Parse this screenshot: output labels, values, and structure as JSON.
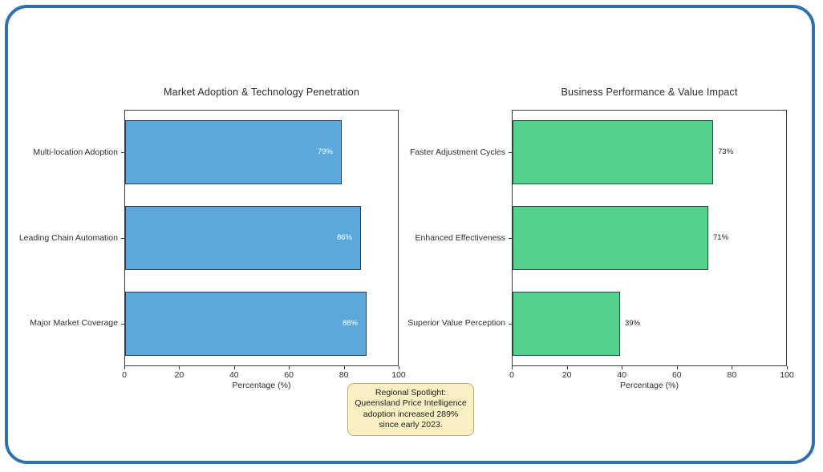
{
  "chart_data": [
    {
      "type": "bar",
      "orientation": "horizontal",
      "title": "Market Adoption & Technology Penetration",
      "categories": [
        "Multi-location Adoption",
        "Leading Chain Automation",
        "Major Market Coverage"
      ],
      "values": [
        79,
        86,
        88
      ],
      "value_labels": [
        "79%",
        "86%",
        "88%"
      ],
      "xlabel": "Percentage (%)",
      "xlim": [
        0,
        100
      ],
      "xticks": [
        "0",
        "20",
        "40",
        "60",
        "80",
        "100"
      ],
      "grid": false,
      "legend": "none",
      "bar_color": "#5BA9DC",
      "bar_edge_color": "#2A3B4D",
      "value_label_position": "inside",
      "value_label_color": "#FFFFFF"
    },
    {
      "type": "bar",
      "orientation": "horizontal",
      "title": "Business Performance & Value Impact",
      "categories": [
        "Faster Adjustment Cycles",
        "Enhanced Effectiveness",
        "Superior Value Perception"
      ],
      "values": [
        73,
        71,
        39
      ],
      "value_labels": [
        "73%",
        "71%",
        "39%"
      ],
      "xlabel": "Percentage (%)",
      "xlim": [
        0,
        100
      ],
      "xticks": [
        "0",
        "20",
        "40",
        "60",
        "80",
        "100"
      ],
      "grid": false,
      "legend": "none",
      "bar_color": "#54D18C",
      "bar_edge_color": "#234A3A",
      "value_label_position": "outside",
      "value_label_color": "#1D1D1D"
    }
  ],
  "annotation": {
    "lines": [
      "Regional Spotlight:",
      "Queensland Price Intelligence",
      "adoption increased 289%",
      "since early 2023."
    ],
    "background_color": "#FAF0C4",
    "border_color": "#C2B06E"
  },
  "frame": {
    "border_color": "#2E6FB0"
  }
}
